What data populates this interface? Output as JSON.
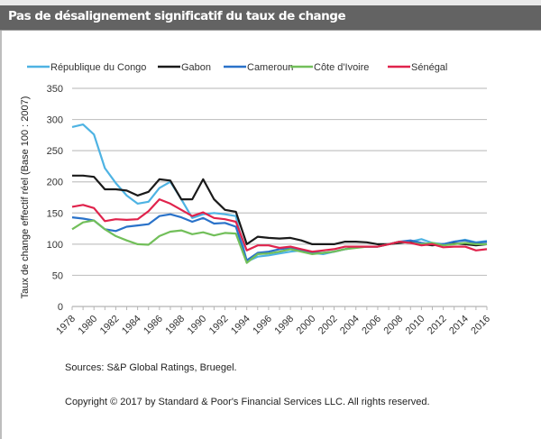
{
  "header": {
    "title": "Pas de désalignement significatif du taux de change"
  },
  "footer": {
    "sources": "Sources: S&P Global Ratings, Bruegel.",
    "copyright": "Copyright © 2017 by Standard & Poor's Financial Services LLC. All rights reserved."
  },
  "chart_data": {
    "type": "line",
    "title": "Pas de désalignement significatif du taux de change",
    "xlabel": "",
    "ylabel": "Taux de change effectif réel (Base 100 : 2007)",
    "ylim": [
      0,
      350
    ],
    "yticks": [
      0,
      50,
      100,
      150,
      200,
      250,
      300,
      350
    ],
    "xlim": [
      1978,
      2016
    ],
    "xtick_labels": [
      "1978",
      "1980",
      "1982",
      "1984",
      "1986",
      "1988",
      "1990",
      "1992",
      "1994",
      "1996",
      "1998",
      "2000",
      "2002",
      "2004",
      "2006",
      "2008",
      "2010",
      "2012",
      "2014",
      "2016"
    ],
    "grid": true,
    "legend_position": "top",
    "x": [
      1978,
      1979,
      1980,
      1981,
      1982,
      1983,
      1984,
      1985,
      1986,
      1987,
      1988,
      1989,
      1990,
      1991,
      1992,
      1993,
      1994,
      1995,
      1996,
      1997,
      1998,
      1999,
      2000,
      2001,
      2002,
      2003,
      2004,
      2005,
      2006,
      2007,
      2008,
      2009,
      2010,
      2011,
      2012,
      2013,
      2014,
      2015,
      2016
    ],
    "series": [
      {
        "name": "République du Congo",
        "color": "#4eb3e3",
        "values": [
          288,
          292,
          276,
          222,
          198,
          178,
          165,
          168,
          190,
          200,
          172,
          142,
          148,
          150,
          148,
          145,
          72,
          80,
          82,
          85,
          88,
          90,
          86,
          84,
          88,
          92,
          95,
          96,
          96,
          100,
          104,
          104,
          108,
          102,
          100,
          104,
          107,
          103,
          105
        ]
      },
      {
        "name": "Gabon",
        "color": "#1a1a1a",
        "values": [
          210,
          210,
          208,
          188,
          188,
          186,
          178,
          184,
          204,
          202,
          172,
          172,
          204,
          172,
          155,
          152,
          100,
          112,
          110,
          109,
          110,
          106,
          100,
          100,
          100,
          104,
          104,
          103,
          100,
          100,
          102,
          104,
          100,
          98,
          100,
          101,
          100,
          98,
          100
        ]
      },
      {
        "name": "Cameroun",
        "color": "#2a72c9",
        "values": [
          143,
          141,
          138,
          124,
          121,
          128,
          130,
          132,
          145,
          148,
          143,
          136,
          142,
          133,
          134,
          128,
          74,
          86,
          88,
          92,
          94,
          90,
          86,
          86,
          88,
          92,
          95,
          96,
          96,
          100,
          104,
          106,
          102,
          100,
          100,
          104,
          106,
          102,
          104
        ]
      },
      {
        "name": "Côte d'Ivoire",
        "color": "#72bf5a",
        "values": [
          124,
          135,
          138,
          124,
          113,
          106,
          100,
          99,
          113,
          120,
          122,
          116,
          119,
          114,
          118,
          117,
          70,
          84,
          85,
          88,
          92,
          88,
          84,
          86,
          88,
          92,
          94,
          96,
          96,
          100,
          104,
          102,
          100,
          102,
          98,
          100,
          102,
          100,
          100
        ]
      },
      {
        "name": "Sénégal",
        "color": "#e0234c",
        "values": [
          160,
          163,
          158,
          137,
          140,
          139,
          140,
          153,
          172,
          165,
          155,
          145,
          151,
          142,
          140,
          136,
          90,
          98,
          98,
          94,
          96,
          92,
          88,
          90,
          92,
          96,
          96,
          96,
          96,
          100,
          104,
          102,
          98,
          100,
          95,
          96,
          96,
          90,
          92
        ]
      }
    ]
  }
}
